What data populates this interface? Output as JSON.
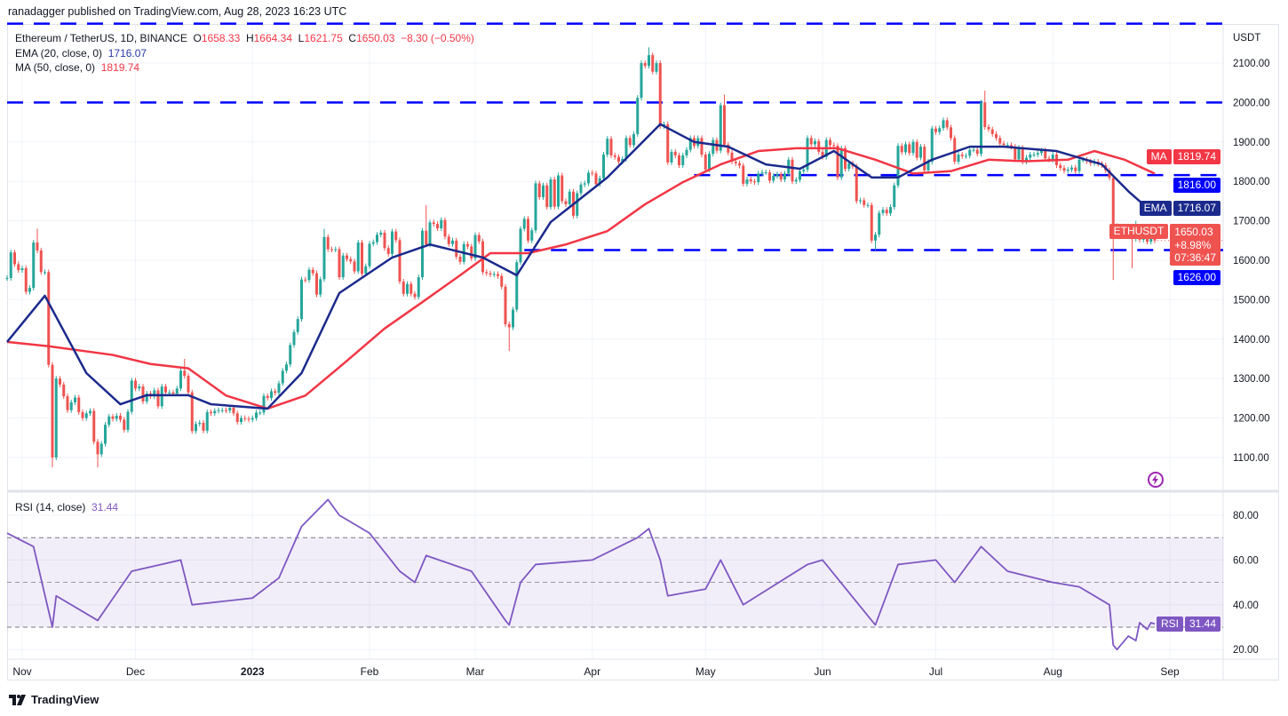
{
  "header": {
    "published": "ranadagger published on TradingView.com, Aug 28, 2023 16:23 UTC"
  },
  "legend": {
    "symbol": "Ethereum / TetherUS, 1D, BINANCE",
    "o_label": "O",
    "o": "1658.33",
    "h_label": "H",
    "h": "1664.34",
    "l_label": "L",
    "l": "1621.75",
    "c_label": "C",
    "c": "1650.03",
    "change": "−8.30 (−0.50%)",
    "ema_label": "EMA (20, close, 0)",
    "ema_value": "1716.07",
    "ma_label": "MA (50, close, 0)",
    "ma_value": "1819.74",
    "rsi_label": "RSI (14, close)",
    "rsi_value": "31.44"
  },
  "axis": {
    "currency": "USDT",
    "price_ticks": [
      "2100.00",
      "2000.00",
      "1900.00",
      "1800.00",
      "1700.00",
      "1600.00",
      "1500.00",
      "1400.00",
      "1300.00",
      "1200.00",
      "1100.00"
    ],
    "rsi_ticks": [
      "80.00",
      "60.00",
      "40.00",
      "20.00"
    ],
    "time_labels": [
      {
        "t": "Nov",
        "d": "2022-11-01"
      },
      {
        "t": "Dec",
        "d": "2022-12-01"
      },
      {
        "t": "2023",
        "d": "2023-01-01",
        "bold": true
      },
      {
        "t": "Feb",
        "d": "2023-02-01"
      },
      {
        "t": "Mar",
        "d": "2023-03-01"
      },
      {
        "t": "Apr",
        "d": "2023-04-01"
      },
      {
        "t": "May",
        "d": "2023-05-01"
      },
      {
        "t": "Jun",
        "d": "2023-06-01"
      },
      {
        "t": "Jul",
        "d": "2023-07-01"
      },
      {
        "t": "Aug",
        "d": "2023-08-01"
      },
      {
        "t": "Sep",
        "d": "2023-09-01"
      }
    ]
  },
  "badges": {
    "ma_tag": "MA",
    "ma": "1819.74",
    "level_1816": "1816.00",
    "ema_tag": "EMA",
    "ema": "1716.07",
    "sym_tag": "ETHUSDT",
    "last": "1650.03",
    "last_change": "+8.98%",
    "countdown": "07:36:47",
    "level_1626": "1626.00",
    "rsi_tag": "RSI",
    "rsi": "31.44"
  },
  "footer": {
    "brand": "TradingView"
  },
  "colors": {
    "up": "#26a69a",
    "down": "#ef5350",
    "ema": "#1b2a8c",
    "ma": "#f23645",
    "level": "#0000ff",
    "rsi": "#7e57c2"
  },
  "chart_data": {
    "type": "candlestick",
    "start_date": "2022-10-28",
    "ylim": [
      1000,
      2230
    ],
    "closes": [
      1555,
      1620,
      1590,
      1575,
      1580,
      1520,
      1530,
      1645,
      1625,
      1570,
      1570,
      1335,
      1100,
      1300,
      1285,
      1255,
      1220,
      1240,
      1252,
      1215,
      1200,
      1212,
      1218,
      1140,
      1108,
      1135,
      1183,
      1204,
      1198,
      1206,
      1196,
      1170,
      1216,
      1295,
      1275,
      1280,
      1242,
      1262,
      1255,
      1270,
      1230,
      1280,
      1265,
      1265,
      1262,
      1275,
      1320,
      1307,
      1265,
      1167,
      1185,
      1188,
      1168,
      1215,
      1212,
      1218,
      1220,
      1220,
      1219,
      1226,
      1212,
      1190,
      1200,
      1198,
      1196,
      1200,
      1214,
      1214,
      1256,
      1251,
      1268,
      1264,
      1288,
      1320,
      1336,
      1385,
      1418,
      1451,
      1551,
      1550,
      1576,
      1567,
      1513,
      1552,
      1659,
      1628,
      1627,
      1628,
      1557,
      1612,
      1603,
      1597,
      1572,
      1645,
      1566,
      1585,
      1642,
      1646,
      1665,
      1670,
      1631,
      1616,
      1673,
      1651,
      1546,
      1515,
      1540,
      1515,
      1507,
      1557,
      1675,
      1640,
      1696,
      1692,
      1681,
      1702,
      1660,
      1641,
      1650,
      1609,
      1596,
      1641,
      1635,
      1605,
      1664,
      1648,
      1570,
      1567,
      1564,
      1565,
      1560,
      1533,
      1438,
      1430,
      1475,
      1595,
      1680,
      1705,
      1650,
      1676,
      1795,
      1760,
      1790,
      1735,
      1805,
      1736,
      1815,
      1750,
      1742,
      1774,
      1713,
      1770,
      1792,
      1795,
      1822,
      1820,
      1793,
      1808,
      1868,
      1908,
      1866,
      1862,
      1850,
      1857,
      1910,
      1892,
      1920,
      2012,
      2100,
      2093,
      2120,
      2078,
      2100,
      1940,
      1945,
      1848,
      1875,
      1866,
      1841,
      1866,
      1880,
      1910,
      1890,
      1910,
      1868,
      1830,
      1870,
      1905,
      1878,
      1993,
      1893,
      1873,
      1850,
      1846,
      1840,
      1794,
      1805,
      1800,
      1798,
      1820,
      1823,
      1823,
      1802,
      1814,
      1818,
      1805,
      1820,
      1855,
      1800,
      1804,
      1826,
      1830,
      1910,
      1894,
      1902,
      1875,
      1862,
      1905,
      1892,
      1890,
      1810,
      1884,
      1832,
      1846,
      1838,
      1750,
      1752,
      1740,
      1740,
      1650,
      1665,
      1720,
      1728,
      1719,
      1735,
      1790,
      1890,
      1874,
      1894,
      1872,
      1900,
      1860,
      1888,
      1828,
      1850,
      1934,
      1925,
      1935,
      1955,
      1937,
      1910,
      1850,
      1868,
      1864,
      1865,
      1880,
      1880,
      1870,
      2000,
      1938,
      1932,
      1920,
      1910,
      1896,
      1892,
      1892,
      1888,
      1856,
      1885,
      1850,
      1860,
      1868,
      1868,
      1872,
      1878,
      1858,
      1855,
      1868,
      1841,
      1834,
      1827,
      1830,
      1835,
      1826,
      1855,
      1855,
      1851,
      1846,
      1850,
      1845,
      1841,
      1828,
      1809,
      1687,
      1662,
      1682,
      1685,
      1667,
      1654,
      1685,
      1652,
      1656,
      1647,
      1658.33,
      1650.03
    ],
    "extremes": [
      {
        "d": "2022-11-05",
        "high": 1680
      },
      {
        "d": "2022-11-09",
        "low": 1075
      },
      {
        "d": "2022-11-21",
        "low": 1075
      },
      {
        "d": "2022-12-14",
        "high": 1350
      },
      {
        "d": "2023-01-20",
        "high": 1680
      },
      {
        "d": "2023-02-16",
        "high": 1740
      },
      {
        "d": "2023-03-10",
        "low": 1370
      },
      {
        "d": "2023-04-16",
        "high": 2140
      },
      {
        "d": "2023-05-06",
        "high": 2020
      },
      {
        "d": "2023-06-15",
        "low": 1626
      },
      {
        "d": "2023-07-14",
        "high": 2030
      },
      {
        "d": "2023-08-17",
        "low": 1550
      },
      {
        "d": "2023-08-22",
        "low": 1580
      },
      {
        "d": "2023-08-23",
        "high": 1700
      }
    ],
    "levels": [
      {
        "price": 2200,
        "from": "2022-10-28"
      },
      {
        "price": 2000,
        "from": "2022-10-28",
        "label": "2000.00"
      },
      {
        "price": 1816,
        "from": "2023-04-28",
        "label": "1816.00"
      },
      {
        "price": 1626,
        "from": "2023-03-14",
        "label": "1626.00"
      }
    ],
    "ema20": [
      [
        "2022-10-28",
        1393
      ],
      [
        "2022-11-07",
        1510
      ],
      [
        "2022-11-18",
        1314
      ],
      [
        "2022-11-27",
        1235
      ],
      [
        "2022-12-04",
        1258
      ],
      [
        "2022-12-15",
        1258
      ],
      [
        "2022-12-21",
        1235
      ],
      [
        "2023-01-05",
        1224
      ],
      [
        "2023-01-14",
        1314
      ],
      [
        "2023-01-24",
        1517
      ],
      [
        "2023-02-07",
        1607
      ],
      [
        "2023-02-17",
        1640
      ],
      [
        "2023-03-03",
        1607
      ],
      [
        "2023-03-12",
        1562
      ],
      [
        "2023-03-21",
        1697
      ],
      [
        "2023-04-05",
        1810
      ],
      [
        "2023-04-19",
        1945
      ],
      [
        "2023-04-28",
        1900
      ],
      [
        "2023-05-07",
        1888
      ],
      [
        "2023-05-17",
        1843
      ],
      [
        "2023-05-26",
        1832
      ],
      [
        "2023-06-04",
        1877
      ],
      [
        "2023-06-14",
        1810
      ],
      [
        "2023-06-21",
        1810
      ],
      [
        "2023-06-30",
        1855
      ],
      [
        "2023-07-10",
        1888
      ],
      [
        "2023-07-19",
        1888
      ],
      [
        "2023-08-02",
        1877
      ],
      [
        "2023-08-14",
        1843
      ],
      [
        "2023-08-21",
        1775
      ],
      [
        "2023-08-28",
        1716.07
      ]
    ],
    "ma50": [
      [
        "2022-10-28",
        1393
      ],
      [
        "2022-11-08",
        1382
      ],
      [
        "2022-11-25",
        1360
      ],
      [
        "2022-12-05",
        1337
      ],
      [
        "2022-12-15",
        1326
      ],
      [
        "2022-12-25",
        1257
      ],
      [
        "2023-01-05",
        1224
      ],
      [
        "2023-01-15",
        1257
      ],
      [
        "2023-01-25",
        1337
      ],
      [
        "2023-02-05",
        1427
      ],
      [
        "2023-02-15",
        1494
      ],
      [
        "2023-02-25",
        1562
      ],
      [
        "2023-03-05",
        1618
      ],
      [
        "2023-03-15",
        1618
      ],
      [
        "2023-03-25",
        1640
      ],
      [
        "2023-04-05",
        1674
      ],
      [
        "2023-04-15",
        1742
      ],
      [
        "2023-04-25",
        1798
      ],
      [
        "2023-05-05",
        1843
      ],
      [
        "2023-05-15",
        1877
      ],
      [
        "2023-05-25",
        1884
      ],
      [
        "2023-06-05",
        1884
      ],
      [
        "2023-06-15",
        1855
      ],
      [
        "2023-06-25",
        1820
      ],
      [
        "2023-07-05",
        1826
      ],
      [
        "2023-07-15",
        1855
      ],
      [
        "2023-07-25",
        1851
      ],
      [
        "2023-08-05",
        1855
      ],
      [
        "2023-08-12",
        1877
      ],
      [
        "2023-08-20",
        1855
      ],
      [
        "2023-08-28",
        1819.74
      ]
    ],
    "rsi": {
      "ylim": [
        14,
        90
      ],
      "bands": [
        30,
        50,
        70
      ],
      "points": [
        [
          "2022-10-28",
          72
        ],
        [
          "2022-11-04",
          66
        ],
        [
          "2022-11-09",
          30
        ],
        [
          "2022-11-10",
          44
        ],
        [
          "2022-11-21",
          33
        ],
        [
          "2022-11-30",
          55
        ],
        [
          "2022-12-13",
          60
        ],
        [
          "2022-12-16",
          40
        ],
        [
          "2023-01-01",
          43
        ],
        [
          "2023-01-08",
          52
        ],
        [
          "2023-01-14",
          75
        ],
        [
          "2023-01-21",
          87
        ],
        [
          "2023-01-24",
          80
        ],
        [
          "2023-02-01",
          72
        ],
        [
          "2023-02-09",
          55
        ],
        [
          "2023-02-13",
          50
        ],
        [
          "2023-02-16",
          62
        ],
        [
          "2023-02-28",
          55
        ],
        [
          "2023-03-09",
          33
        ],
        [
          "2023-03-10",
          31
        ],
        [
          "2023-03-13",
          50
        ],
        [
          "2023-03-17",
          58
        ],
        [
          "2023-04-01",
          60
        ],
        [
          "2023-04-13",
          70
        ],
        [
          "2023-04-16",
          74
        ],
        [
          "2023-04-19",
          60
        ],
        [
          "2023-04-21",
          44
        ],
        [
          "2023-05-01",
          47
        ],
        [
          "2023-05-05",
          60
        ],
        [
          "2023-05-11",
          40
        ],
        [
          "2023-05-28",
          58
        ],
        [
          "2023-06-01",
          60
        ],
        [
          "2023-06-14",
          33
        ],
        [
          "2023-06-15",
          31
        ],
        [
          "2023-06-21",
          58
        ],
        [
          "2023-07-01",
          60
        ],
        [
          "2023-07-06",
          50
        ],
        [
          "2023-07-13",
          66
        ],
        [
          "2023-07-20",
          55
        ],
        [
          "2023-08-01",
          50
        ],
        [
          "2023-08-08",
          48
        ],
        [
          "2023-08-16",
          40
        ],
        [
          "2023-08-17",
          22
        ],
        [
          "2023-08-18",
          20
        ],
        [
          "2023-08-21",
          26
        ],
        [
          "2023-08-23",
          24
        ],
        [
          "2023-08-24",
          32
        ],
        [
          "2023-08-26",
          29
        ],
        [
          "2023-08-27",
          32
        ],
        [
          "2023-08-28",
          31.44
        ]
      ]
    }
  }
}
